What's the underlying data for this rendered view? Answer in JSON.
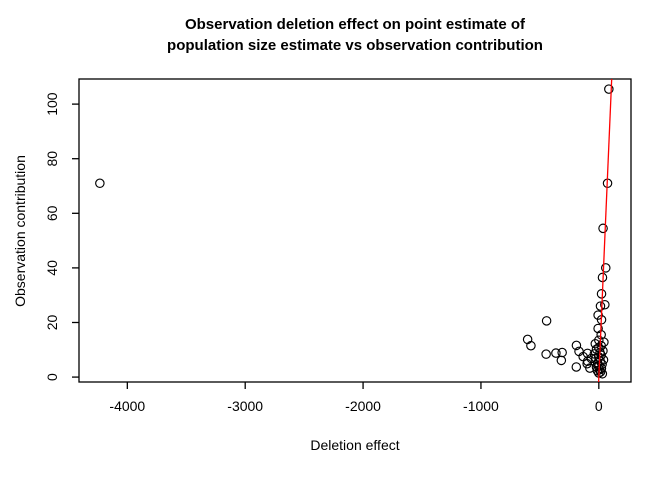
{
  "title": {
    "line1": "Observation deletion effect on point estimate of",
    "line2": "population size estimate vs observation contribution"
  },
  "colors": {
    "background": "#ffffff",
    "axis": "#000000",
    "text": "#000000",
    "marker": "#000000",
    "fit_line": "#ff0000"
  },
  "chart_data": {
    "type": "scatter",
    "title": "Observation deletion effect on point estimate of population size estimate vs observation contribution",
    "xlabel": "Deletion effect",
    "ylabel": "Observation contribution",
    "xlim": [
      -4410,
      273
    ],
    "ylim": [
      -1.8,
      109.2
    ],
    "x_ticks": [
      -4000,
      -3000,
      -2000,
      -1000,
      0
    ],
    "y_ticks": [
      0,
      20,
      40,
      60,
      80,
      100
    ],
    "grid": false,
    "legend": null,
    "marker": "open-circle",
    "marker_color": "#000000",
    "line": {
      "kind": "abline",
      "slope": 1,
      "intercept": 0,
      "color": "#ff0000"
    },
    "points": [
      [
        -4233,
        71
      ],
      [
        -604,
        13.8
      ],
      [
        -576,
        11.5
      ],
      [
        -443,
        20.6
      ],
      [
        -447,
        8.4
      ],
      [
        -364,
        8.8
      ],
      [
        -311,
        9.0
      ],
      [
        -318,
        6.1
      ],
      [
        -190,
        11.6
      ],
      [
        -168,
        9.4
      ],
      [
        -133,
        7.5
      ],
      [
        -191,
        3.7
      ],
      [
        -99,
        4.9
      ],
      [
        -76,
        3.3
      ],
      [
        -96,
        8.7
      ],
      [
        -63,
        6.8
      ],
      [
        -95,
        5.8
      ],
      [
        85,
        105.5
      ],
      [
        74,
        71
      ],
      [
        36,
        54.5
      ],
      [
        59,
        40
      ],
      [
        31,
        36.5
      ],
      [
        23,
        30.5
      ],
      [
        51,
        26.5
      ],
      [
        14,
        26
      ],
      [
        -6,
        22.7
      ],
      [
        23,
        21
      ],
      [
        -6,
        17.8
      ],
      [
        20,
        15.5
      ],
      [
        0,
        13.5
      ],
      [
        43,
        12.8
      ],
      [
        -30,
        12.2
      ],
      [
        20,
        11.5
      ],
      [
        0,
        10.8
      ],
      [
        -20,
        10.2
      ],
      [
        35,
        9.6
      ],
      [
        10,
        9.0
      ],
      [
        -38,
        8.5
      ],
      [
        20,
        8.0
      ],
      [
        0,
        7.4
      ],
      [
        -25,
        6.9
      ],
      [
        40,
        6.3
      ],
      [
        12,
        5.8
      ],
      [
        -10,
        5.2
      ],
      [
        28,
        4.7
      ],
      [
        2,
        4.2
      ],
      [
        -20,
        3.7
      ],
      [
        22,
        3.2
      ],
      [
        8,
        2.7
      ],
      [
        -12,
        2.3
      ],
      [
        15,
        1.9
      ],
      [
        0,
        1.5
      ],
      [
        30,
        1.2
      ]
    ]
  }
}
